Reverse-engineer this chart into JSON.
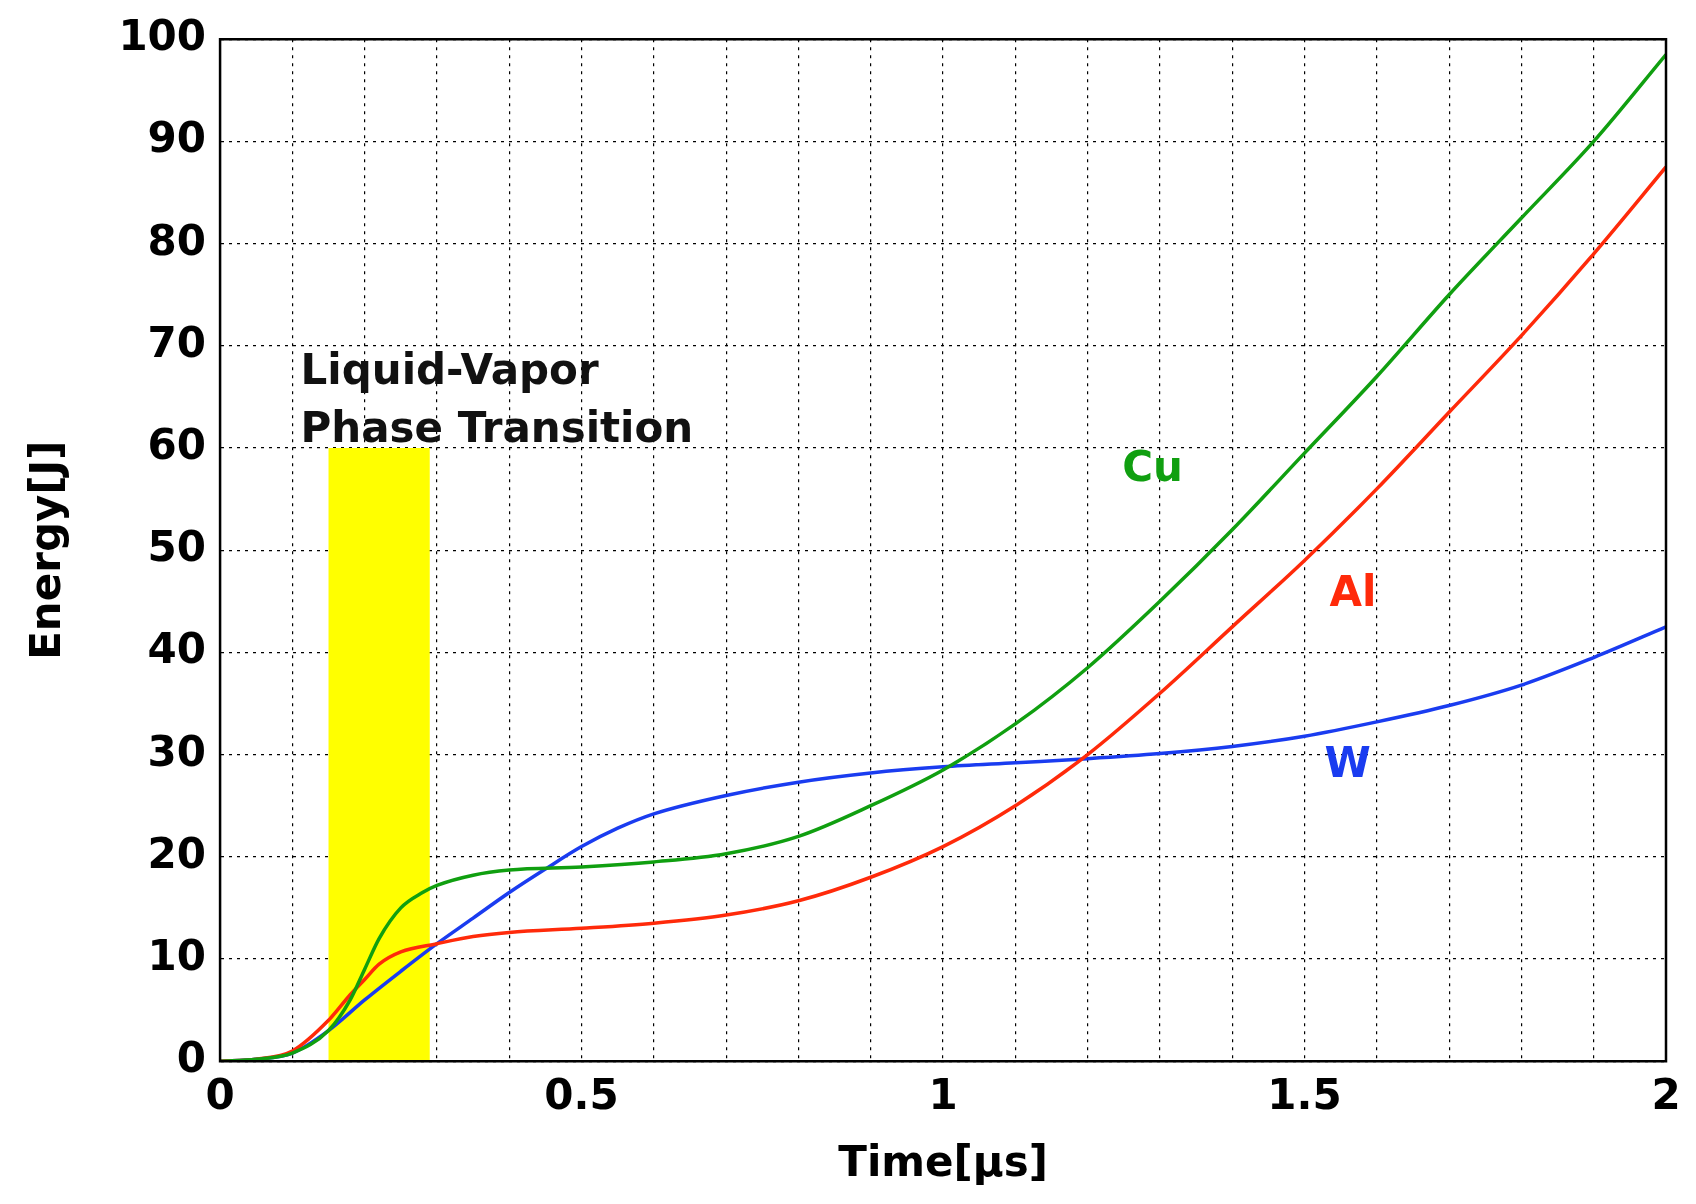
{
  "chart_data": {
    "type": "line",
    "xlabel": "Time[μs]",
    "ylabel": "Energy[J]",
    "xlim": [
      0,
      2
    ],
    "ylim": [
      0,
      100
    ],
    "xticks": [
      0,
      {
        "value": 0.1,
        "label": null
      },
      {
        "value": 0.2,
        "label": null
      },
      {
        "value": 0.3,
        "label": null
      },
      {
        "value": 0.4,
        "label": null
      },
      0.5,
      {
        "value": 0.6,
        "label": null
      },
      {
        "value": 0.7,
        "label": null
      },
      {
        "value": 0.8,
        "label": null
      },
      {
        "value": 0.9,
        "label": null
      },
      1,
      {
        "value": 1.1,
        "label": null
      },
      {
        "value": 1.2,
        "label": null
      },
      {
        "value": 1.3,
        "label": null
      },
      {
        "value": 1.4,
        "label": null
      },
      1.5,
      {
        "value": 1.6,
        "label": null
      },
      {
        "value": 1.7,
        "label": null
      },
      {
        "value": 1.8,
        "label": null
      },
      {
        "value": 1.9,
        "label": null
      },
      2
    ],
    "yticks": [
      0,
      10,
      20,
      30,
      40,
      50,
      60,
      70,
      80,
      90,
      100
    ],
    "grid": true,
    "legend": false,
    "marker": "none",
    "line_style": "solid",
    "bands": [
      {
        "axis": "x",
        "from": 0.15,
        "to": 0.29,
        "label": "Liquid-Vapor Phase Transition",
        "color": "#ffff00"
      }
    ],
    "series": [
      {
        "name": "Cu",
        "color": "#109f10",
        "x": [
          0,
          0.05,
          0.1,
          0.15,
          0.18,
          0.2,
          0.22,
          0.25,
          0.28,
          0.3,
          0.35,
          0.4,
          0.5,
          0.6,
          0.7,
          0.8,
          0.9,
          1.0,
          1.1,
          1.2,
          1.3,
          1.4,
          1.5,
          1.6,
          1.7,
          1.8,
          1.9,
          2.0
        ],
        "values": [
          0,
          0.2,
          0.8,
          3,
          6,
          9,
          12,
          15,
          16.5,
          17.2,
          18.2,
          18.7,
          19,
          19.5,
          20.3,
          22,
          25,
          28.5,
          33,
          38.5,
          45,
          52,
          59.5,
          67,
          75,
          82.5,
          90,
          98.5
        ]
      },
      {
        "name": "Al",
        "color": "#ff2a0a",
        "x": [
          0,
          0.05,
          0.1,
          0.15,
          0.18,
          0.2,
          0.22,
          0.25,
          0.3,
          0.35,
          0.4,
          0.5,
          0.6,
          0.7,
          0.8,
          0.9,
          1.0,
          1.1,
          1.2,
          1.3,
          1.4,
          1.5,
          1.6,
          1.7,
          1.8,
          1.9,
          2.0
        ],
        "values": [
          0,
          0.2,
          1,
          4,
          6.5,
          8,
          9.5,
          10.7,
          11.5,
          12.2,
          12.6,
          13,
          13.5,
          14.3,
          15.7,
          18,
          21,
          25,
          30,
          36,
          42.5,
          49,
          56,
          63.5,
          71,
          79,
          87.5
        ]
      },
      {
        "name": "W",
        "color": "#1a3cf0",
        "x": [
          0,
          0.05,
          0.1,
          0.15,
          0.2,
          0.25,
          0.3,
          0.35,
          0.4,
          0.45,
          0.5,
          0.55,
          0.6,
          0.7,
          0.8,
          0.9,
          1.0,
          1.1,
          1.2,
          1.3,
          1.4,
          1.5,
          1.6,
          1.7,
          1.8,
          1.9,
          2.0
        ],
        "values": [
          0,
          0.2,
          0.8,
          3,
          6,
          8.8,
          11.5,
          14,
          16.5,
          18.8,
          21,
          22.8,
          24.2,
          26,
          27.3,
          28.2,
          28.8,
          29.2,
          29.6,
          30.1,
          30.8,
          31.8,
          33.2,
          34.8,
          36.8,
          39.5,
          42.5
        ]
      }
    ]
  }
}
